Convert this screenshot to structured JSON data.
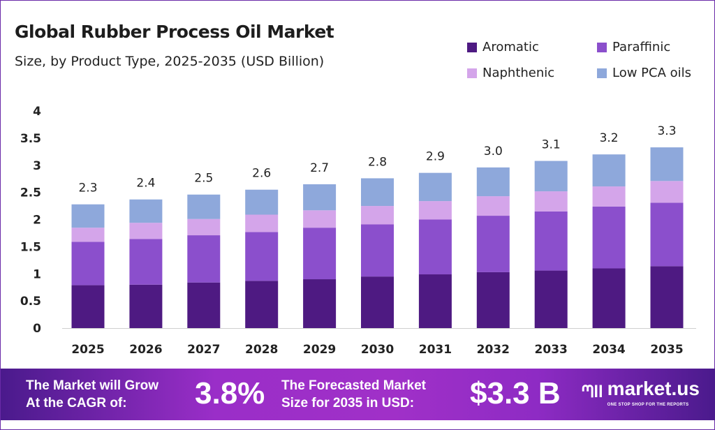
{
  "chart_data": {
    "type": "bar",
    "stacked": true,
    "title": "Global Rubber Process Oil Market",
    "subtitle": "Size, by Product Type, 2025-2035 (USD Billion)",
    "xlabel": "",
    "ylabel": "",
    "ylim": [
      0,
      4
    ],
    "yticks": [
      "0",
      "0.5",
      "1",
      "1.5",
      "2",
      "2.5",
      "3",
      "3.5",
      "4"
    ],
    "grid": false,
    "legend_position": "top-right",
    "categories": [
      "2025",
      "2026",
      "2027",
      "2028",
      "2029",
      "2030",
      "2031",
      "2032",
      "2033",
      "2034",
      "2035"
    ],
    "series": [
      {
        "name": "Aromatic",
        "color": "#4e1a82",
        "values": [
          0.79,
          0.8,
          0.84,
          0.87,
          0.9,
          0.95,
          0.99,
          1.03,
          1.06,
          1.1,
          1.14
        ]
      },
      {
        "name": "Paraffinic",
        "color": "#8b4fcc",
        "values": [
          0.8,
          0.84,
          0.87,
          0.9,
          0.95,
          0.96,
          1.01,
          1.04,
          1.09,
          1.14,
          1.17
        ]
      },
      {
        "name": "Naphthenic",
        "color": "#d4a5ea",
        "values": [
          0.26,
          0.3,
          0.3,
          0.32,
          0.32,
          0.34,
          0.34,
          0.36,
          0.37,
          0.37,
          0.4
        ]
      },
      {
        "name": "Low PCA oils",
        "color": "#8ea8db",
        "values": [
          0.43,
          0.43,
          0.45,
          0.46,
          0.48,
          0.51,
          0.52,
          0.53,
          0.56,
          0.59,
          0.62
        ]
      }
    ],
    "totals": [
      "2.3",
      "2.4",
      "2.5",
      "2.6",
      "2.7",
      "2.8",
      "2.9",
      "3.0",
      "3.1",
      "3.2",
      "3.3"
    ]
  },
  "banner": {
    "cagr_label_1": "The Market will Grow",
    "cagr_label_2": "At the CAGR of:",
    "cagr_value": "3.8%",
    "forecast_label_1": "The Forecasted Market",
    "forecast_label_2": "Size for 2035 in USD:",
    "forecast_value": "$3.3 B",
    "brand": "market.us",
    "tagline": "ONE STOP SHOP FOR THE REPORTS",
    "colors": {
      "start": "#4a1a8c",
      "mid": "#a030c8"
    }
  }
}
